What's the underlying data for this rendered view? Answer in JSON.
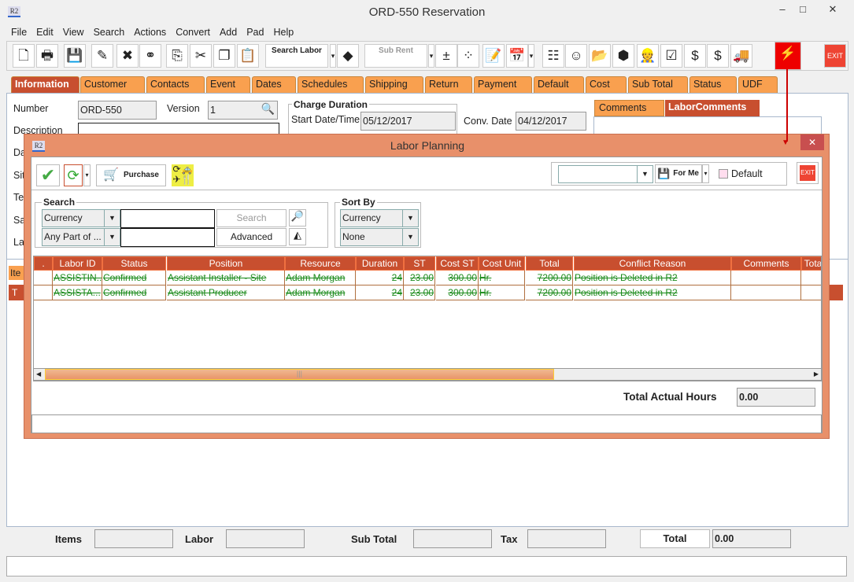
{
  "window": {
    "title": "ORD-550 Reservation",
    "app_icon": "R2",
    "minimize": "–",
    "maximize": "□",
    "close": "✕"
  },
  "menu": [
    "File",
    "Edit",
    "View",
    "Search",
    "Actions",
    "Convert",
    "Add",
    "Pad",
    "Help"
  ],
  "toolbar": [
    {
      "name": "new-icon",
      "g": "🗋"
    },
    {
      "name": "print-icon",
      "g": "🖶"
    },
    {
      "name": "save-icon",
      "g": "💾"
    },
    {
      "name": "edit-pencil-icon",
      "g": "✎"
    },
    {
      "name": "delete-icon",
      "g": "✖"
    },
    {
      "name": "binoculars-icon",
      "g": "⚭"
    },
    {
      "name": "export-icon",
      "g": "⎘"
    },
    {
      "name": "cut-icon",
      "g": "✂"
    },
    {
      "name": "copy-icon",
      "g": "❐"
    },
    {
      "name": "paste-icon",
      "g": "📋"
    },
    {
      "name": "search-labor-button",
      "g": "Search Labor",
      "wide": true
    },
    {
      "name": "dropdown-arrow-icon",
      "g": "▾"
    },
    {
      "name": "shapes-icon",
      "g": "◆"
    },
    {
      "name": "sub-rent-button",
      "g": "Sub Rent",
      "wide": true
    },
    {
      "name": "dropdown-arrow-icon",
      "g": "▾"
    },
    {
      "name": "add-remove-icon",
      "g": "±"
    },
    {
      "name": "grid-icon",
      "g": "⁘"
    },
    {
      "name": "note-edit-icon",
      "g": "📝"
    },
    {
      "name": "calendar-icon",
      "g": "📅"
    },
    {
      "name": "dropdown-arrow-icon",
      "g": "▾"
    },
    {
      "name": "hierarchy-icon",
      "g": "☷"
    },
    {
      "name": "smiley-icon",
      "g": "☺"
    },
    {
      "name": "folder-clock-icon",
      "g": "📂"
    },
    {
      "name": "box-icon",
      "g": "⬢"
    },
    {
      "name": "worker-icon",
      "g": "👷"
    },
    {
      "name": "checklist-icon",
      "g": "☑"
    },
    {
      "name": "money-forward-icon",
      "g": "$"
    },
    {
      "name": "money-notes-icon",
      "g": "$"
    },
    {
      "name": "truck-icon",
      "g": "🚚"
    },
    {
      "name": "lightning-icon",
      "g": "⚡"
    },
    {
      "name": "exit-button",
      "g": "EXIT"
    }
  ],
  "tabs": [
    "Information",
    "Customer",
    "Contacts",
    "Event",
    "Dates",
    "Schedules",
    "Shipping",
    "Return",
    "Payment",
    "Default",
    "Cost",
    "Sub Total",
    "Status",
    "UDF"
  ],
  "info": {
    "number_label": "Number",
    "number": "ORD-550",
    "version_label": "Version",
    "version": "1",
    "description_label": "Description",
    "partial_labels": [
      "Da",
      "Sit",
      "Te",
      "Sa",
      "La"
    ],
    "charge_duration": "Charge Duration",
    "start_label": "Start Date/Time",
    "start": "05/12/2017",
    "conv_label": "Conv. Date",
    "conv": "04/12/2017",
    "comment_tabs": [
      "Comments",
      "LaborComments"
    ],
    "lower_tab": "Ite",
    "lower_strip": "T"
  },
  "dialog": {
    "title": "Labor Planning",
    "icon": "R2",
    "purchase": "Purchase",
    "for_me": "For Me",
    "default_label": "Default",
    "exit": "EXIT",
    "search": {
      "legend": "Search",
      "field1": "Currency",
      "field2": "Any Part of ...",
      "search_btn": "Search",
      "advanced_btn": "Advanced"
    },
    "sort": {
      "legend": "Sort By",
      "field1": "Currency",
      "field2": "None"
    },
    "columns": [
      ".",
      "Labor ID",
      "Status",
      "Position",
      "Resource",
      "Duration",
      "ST",
      "Cost ST",
      "Cost Unit",
      "Total",
      "Conflict Reason",
      "Comments",
      "Tota"
    ],
    "rows": [
      [
        "",
        "ASSISTIN...",
        "Confirmed",
        "Assistant Installer - Site",
        "Adam Morgan",
        "24",
        "23.00",
        "300.00",
        "Hr.",
        "7200.00",
        "Position is Deleted in R2",
        "",
        ""
      ],
      [
        "",
        "ASSISTA...",
        "Confirmed",
        "Assistant Producer",
        "Adam Morgan",
        "24",
        "23.00",
        "300.00",
        "Hr.",
        "7200.00",
        "Position is Deleted in R2",
        "",
        ""
      ]
    ],
    "scroll_position": 0.4,
    "total_hours_label": "Total Actual Hours",
    "total_hours": "0.00"
  },
  "footer": {
    "items": "Items",
    "labor": "Labor",
    "subtotal": "Sub Total",
    "tax": "Tax",
    "total": "Total",
    "total_value": "0.00"
  },
  "colors": {
    "accent": "#c84f2f",
    "tab": "#f9a04f",
    "dialog": "#e8906a",
    "strike_text": "#1a8a1a"
  }
}
